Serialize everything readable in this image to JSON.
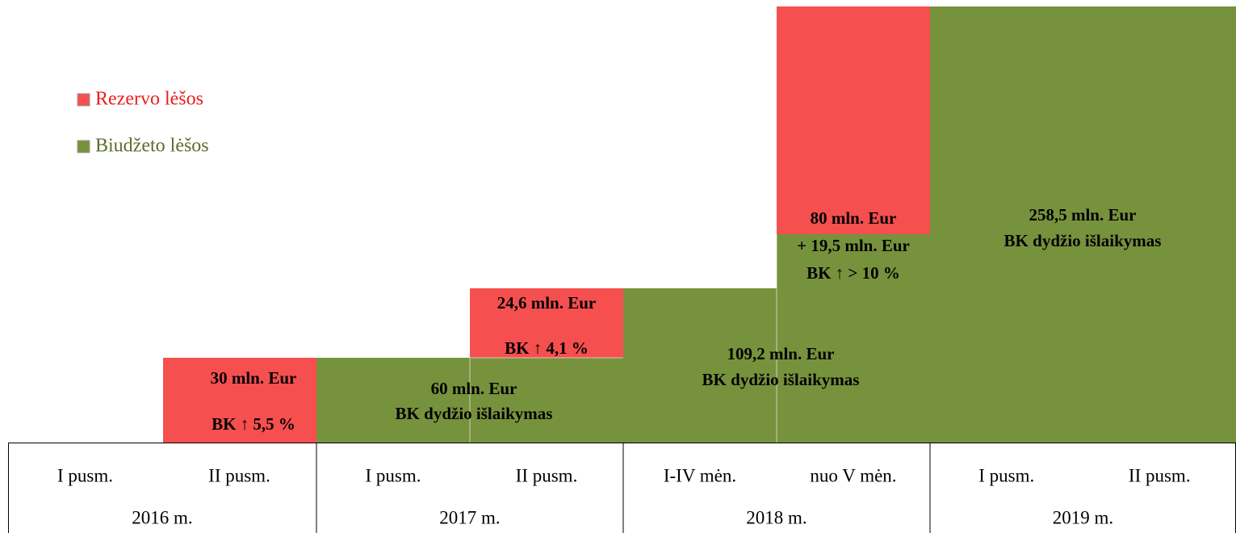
{
  "legend": [
    {
      "label": "Rezervo lėšos",
      "color": "#f64f4f"
    },
    {
      "label": "Biudžeto lėšos",
      "color": "#77923c"
    }
  ],
  "blocks": [
    {
      "kind": "reserve",
      "lines": [
        "30 mln. Eur",
        "BK ↑ 5,5 %"
      ]
    },
    {
      "kind": "budget",
      "lines": [
        "60 mln. Eur",
        "BK dydžio išlaikymas"
      ]
    },
    {
      "kind": "reserve",
      "lines": [
        "24,6 mln. Eur",
        "BK ↑ 4,1 %"
      ]
    },
    {
      "kind": "budget",
      "lines": [
        "109,2 mln. Eur",
        "BK dydžio išlaikymas"
      ]
    },
    {
      "kind": "budget",
      "lines": [
        "+ 19,5 mln. Eur",
        "BK ↑ > 10 %"
      ]
    },
    {
      "kind": "reserve",
      "lines": [
        "80 mln. Eur"
      ]
    },
    {
      "kind": "budget",
      "lines": [
        "258,5 mln. Eur",
        "BK dydžio išlaikymas"
      ]
    }
  ],
  "table": {
    "periods": [
      "I pusm.",
      "II pusm.",
      "I pusm.",
      "II pusm.",
      "I-IV mėn.",
      "nuo V mėn.",
      "I pusm.",
      "II pusm."
    ],
    "years": [
      "2016 m.",
      "2017 m.",
      "2018 m.",
      "2019 m."
    ]
  }
}
